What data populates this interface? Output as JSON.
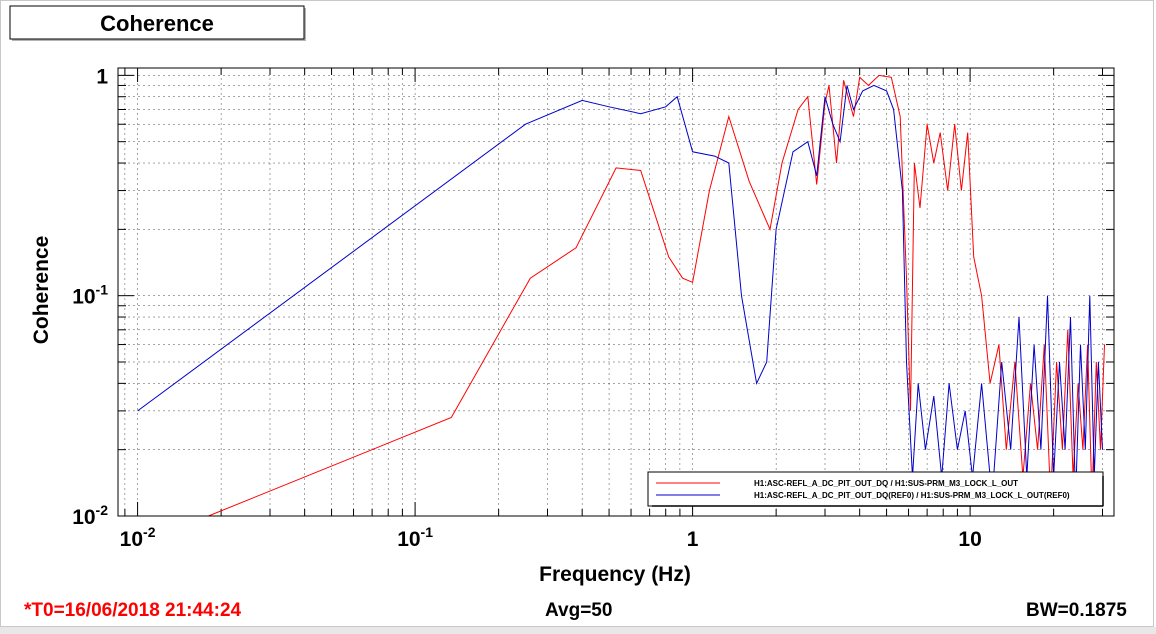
{
  "footer": {
    "t0": "*T0=16/06/2018 21:44:24",
    "avg": "Avg=50",
    "bw": "BW=0.1875",
    "t0_color": "#ff0000"
  },
  "chart_data": {
    "type": "line",
    "title": "Coherence",
    "xlabel": "Frequency (Hz)",
    "ylabel": "Coherence",
    "xscale": "log",
    "yscale": "log",
    "xlim": [
      0.0085,
      33
    ],
    "ylim": [
      0.01,
      1.08
    ],
    "grid": true,
    "legend_position": "bottom-right",
    "x_ticks": [
      {
        "value": 0.01,
        "base": "10",
        "exp": "-2"
      },
      {
        "value": 0.1,
        "base": "10",
        "exp": "-1"
      },
      {
        "value": 1,
        "base": "1",
        "exp": ""
      },
      {
        "value": 10,
        "base": "10",
        "exp": ""
      }
    ],
    "y_ticks": [
      {
        "value": 0.01,
        "base": "10",
        "exp": "-2"
      },
      {
        "value": 0.1,
        "base": "10",
        "exp": "-1"
      },
      {
        "value": 1,
        "base": "1",
        "exp": ""
      }
    ],
    "series": [
      {
        "name": "H1:ASC-REFL_A_DC_PIT_OUT_DQ / H1:SUS-PRM_M3_LOCK_L_OUT",
        "color": "#ff0000",
        "x": [
          0.018,
          0.135,
          0.26,
          0.38,
          0.53,
          0.65,
          0.82,
          0.92,
          1.0,
          1.15,
          1.35,
          1.6,
          1.9,
          2.1,
          2.4,
          2.6,
          2.8,
          3.0,
          3.1,
          3.3,
          3.5,
          3.8,
          4.0,
          4.3,
          4.7,
          5.2,
          5.6,
          5.9,
          6.1,
          6.3,
          6.6,
          7.0,
          7.4,
          7.8,
          8.3,
          8.8,
          9.3,
          9.8,
          10.3,
          11.0,
          11.8,
          12.7,
          13.5,
          14.5,
          15.5,
          16.5,
          17.5,
          18.5,
          19.5,
          20.5,
          21.5,
          22.5,
          23.5,
          24.5,
          25.5,
          26.5,
          27.5,
          28.5,
          29.5,
          30.5
        ],
        "y": [
          0.01,
          0.028,
          0.12,
          0.165,
          0.38,
          0.37,
          0.15,
          0.12,
          0.115,
          0.3,
          0.65,
          0.33,
          0.2,
          0.4,
          0.7,
          0.8,
          0.32,
          0.75,
          0.9,
          0.4,
          0.95,
          0.65,
          0.98,
          0.9,
          1.0,
          0.98,
          0.65,
          0.12,
          0.03,
          0.4,
          0.25,
          0.6,
          0.4,
          0.55,
          0.3,
          0.6,
          0.3,
          0.55,
          0.15,
          0.1,
          0.04,
          0.06,
          0.02,
          0.05,
          0.015,
          0.04,
          0.02,
          0.06,
          0.012,
          0.05,
          0.02,
          0.07,
          0.015,
          0.04,
          0.02,
          0.06,
          0.012,
          0.05,
          0.02,
          0.06
        ]
      },
      {
        "name": "H1:ASC-REFL_A_DC_PIT_OUT_DQ(REF0) / H1:SUS-PRM_M3_LOCK_L_OUT(REF0)",
        "color": "#0000cc",
        "x": [
          0.01,
          0.25,
          0.4,
          0.5,
          0.65,
          0.8,
          0.88,
          1.0,
          1.2,
          1.35,
          1.5,
          1.7,
          1.85,
          2.0,
          2.3,
          2.6,
          2.8,
          3.0,
          3.2,
          3.4,
          3.6,
          3.8,
          4.1,
          4.5,
          5.0,
          5.3,
          5.7,
          5.9,
          6.2,
          6.5,
          6.9,
          7.4,
          7.9,
          8.4,
          9.0,
          9.6,
          10.2,
          11.0,
          12.0,
          13.0,
          14.0,
          15.0,
          16.0,
          17.0,
          18.0,
          19.0,
          20.0,
          21.0,
          22.0,
          23.0,
          24.0,
          25.0,
          26.0,
          27.0,
          28.0,
          29.0,
          30.0
        ],
        "y": [
          0.03,
          0.6,
          0.77,
          0.72,
          0.67,
          0.72,
          0.8,
          0.45,
          0.43,
          0.4,
          0.1,
          0.04,
          0.05,
          0.2,
          0.45,
          0.5,
          0.35,
          0.8,
          0.6,
          0.5,
          0.9,
          0.7,
          0.85,
          0.9,
          0.85,
          0.7,
          0.3,
          0.05,
          0.015,
          0.04,
          0.02,
          0.035,
          0.015,
          0.04,
          0.02,
          0.03,
          0.015,
          0.04,
          0.012,
          0.05,
          0.02,
          0.08,
          0.015,
          0.06,
          0.02,
          0.1,
          0.015,
          0.05,
          0.02,
          0.08,
          0.012,
          0.06,
          0.02,
          0.1,
          0.015,
          0.05,
          0.02
        ]
      }
    ]
  }
}
